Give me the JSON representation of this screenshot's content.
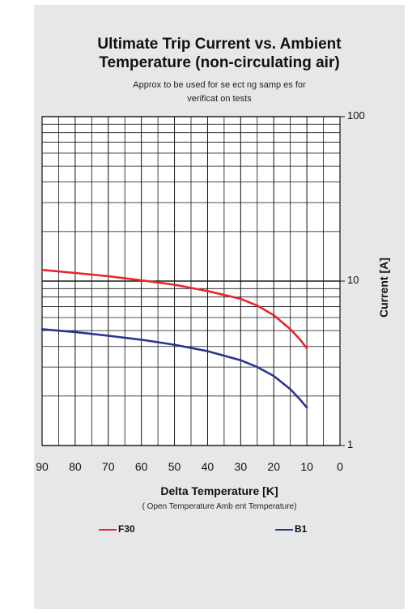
{
  "chart_data": {
    "type": "line",
    "title": "Ultimate Trip Current vs. Ambient Temperature (non-circulating air)",
    "title_lines": [
      "Ultimate Trip Current vs. Ambient",
      "Temperature (non-circulating air)"
    ],
    "subtitle": "Approx. to be used for selecting samples for verification tests",
    "subtitle_lines": [
      "Approx  to be used for se ect ng samp es for",
      "verificat on tests"
    ],
    "xlabel": "Delta Temperature [K]",
    "xlabel_note": "(   Open Temperature   Amb ent Temperature)",
    "ylabel": "Current [A]",
    "x_ticks": [
      "90",
      "80",
      "70",
      "60",
      "50",
      "40",
      "30",
      "20",
      "10",
      "0"
    ],
    "xlim": [
      90,
      0
    ],
    "y_scale": "log",
    "ylim": [
      1,
      100
    ],
    "y_ticks": [
      "100",
      "10",
      "1"
    ],
    "grid": true,
    "legend_position": "bottom",
    "series": [
      {
        "name": "F30",
        "color": "#e8242c",
        "x": [
          90,
          80,
          70,
          60,
          50,
          40,
          30,
          25,
          20,
          15,
          12,
          10
        ],
        "y": [
          11.7,
          11.2,
          10.7,
          10.1,
          9.5,
          8.7,
          7.8,
          7.1,
          6.2,
          5.1,
          4.4,
          3.9
        ]
      },
      {
        "name": "B1",
        "color": "#2a3590",
        "x": [
          90,
          80,
          70,
          60,
          50,
          40,
          30,
          25,
          20,
          15,
          12,
          10
        ],
        "y": [
          5.1,
          4.9,
          4.65,
          4.4,
          4.1,
          3.75,
          3.3,
          3.0,
          2.65,
          2.2,
          1.9,
          1.7
        ]
      }
    ]
  }
}
